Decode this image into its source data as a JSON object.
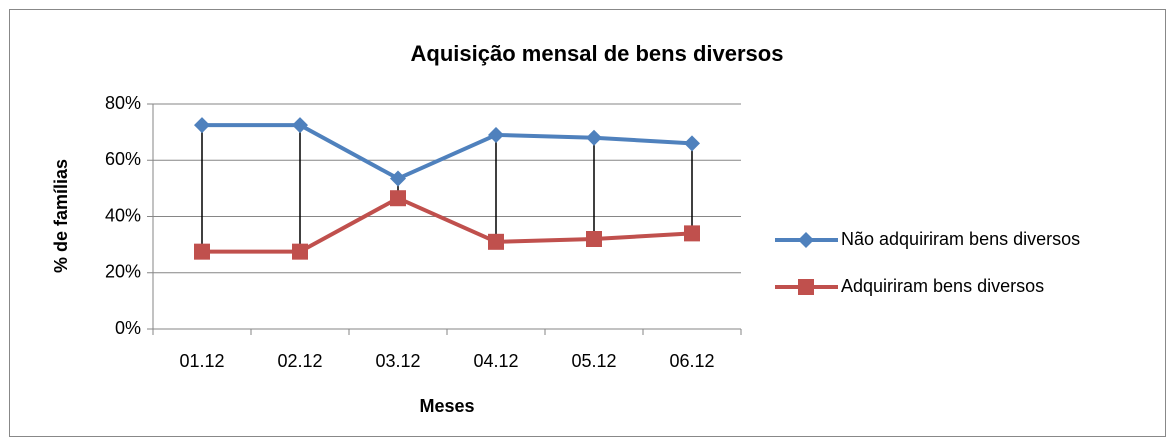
{
  "chart_data": {
    "type": "line",
    "title": "Aquisição mensal de bens diversos",
    "x_label": "Meses",
    "y_label": "% de famílias",
    "categories": [
      "01.12",
      "02.12",
      "03.12",
      "04.12",
      "05.12",
      "06.12"
    ],
    "series": [
      {
        "name": "Não adquiriram bens diversos",
        "color": "#4f81bd",
        "marker": "diamond",
        "values": [
          72.5,
          72.5,
          53.5,
          69,
          68,
          66
        ]
      },
      {
        "name": "Adquiriram bens diversos",
        "color": "#c0504d",
        "marker": "square",
        "values": [
          27.5,
          27.5,
          46.5,
          31,
          32,
          34
        ]
      }
    ],
    "ylim": [
      0,
      80
    ],
    "yticks": [
      {
        "value": 0,
        "label": "0%"
      },
      {
        "value": 20,
        "label": "20%"
      },
      {
        "value": 40,
        "label": "40%"
      },
      {
        "value": 60,
        "label": "60%"
      },
      {
        "value": 80,
        "label": "80%"
      }
    ],
    "grid": true,
    "drop_lines": true,
    "legend": "right"
  }
}
